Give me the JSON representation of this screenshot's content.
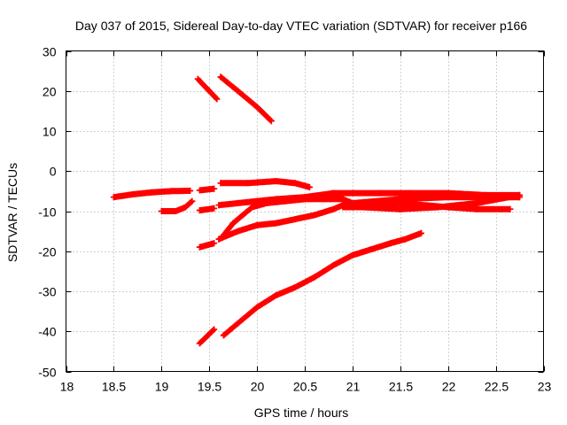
{
  "chart_data": {
    "type": "scatter",
    "title": "Day 037 of 2015, Sidereal Day-to-day VTEC variation (SDTVAR) for receiver p166",
    "xlabel": "GPS time / hours",
    "ylabel": "SDTVAR / TECUs",
    "xlim": [
      18,
      23
    ],
    "ylim": [
      -50,
      30
    ],
    "xticks": [
      18,
      18.5,
      19,
      19.5,
      20,
      20.5,
      21,
      21.5,
      22,
      22.5,
      23
    ],
    "xtick_labels": [
      "18",
      "18.5",
      "19",
      "19.5",
      "20",
      "20.5",
      "21",
      "21.5",
      "22",
      "22.5",
      "23"
    ],
    "yticks": [
      -50,
      -40,
      -30,
      -20,
      -10,
      0,
      10,
      20,
      30
    ],
    "ytick_labels": [
      "-50",
      "-40",
      "-30",
      "-20",
      "-10",
      "0",
      "10",
      "20",
      "30"
    ],
    "grid": true,
    "marker": "plus",
    "color": "#ff0000",
    "series": [
      {
        "x": [
          18.5,
          18.7,
          18.9,
          19.1,
          19.3
        ],
        "y": [
          -6.5,
          -5.8,
          -5.3,
          -5.0,
          -4.9
        ]
      },
      {
        "x": [
          19.4,
          19.55
        ],
        "y": [
          -4.8,
          -4.4
        ]
      },
      {
        "x": [
          19.0,
          19.15,
          19.25,
          19.32
        ],
        "y": [
          -10,
          -10,
          -9,
          -7.5
        ]
      },
      {
        "x": [
          19.4,
          19.55
        ],
        "y": [
          -9.8,
          -9.3
        ]
      },
      {
        "x": [
          19.4,
          19.55
        ],
        "y": [
          -19,
          -18
        ]
      },
      {
        "x": [
          19.4,
          19.55
        ],
        "y": [
          -43,
          -39.5
        ]
      },
      {
        "x": [
          19.38,
          19.5,
          19.58
        ],
        "y": [
          23,
          20,
          18
        ]
      },
      {
        "x": [
          19.62,
          19.8,
          20.0,
          20.15
        ],
        "y": [
          23.5,
          20,
          16,
          12.5
        ]
      },
      {
        "x": [
          19.62,
          19.9,
          20.2,
          20.4,
          20.55
        ],
        "y": [
          -3,
          -3,
          -2.5,
          -3,
          -4
        ]
      },
      {
        "x": [
          19.6,
          19.8,
          20.0,
          20.2,
          20.5,
          20.8,
          21.0,
          21.3,
          21.6,
          22.0,
          22.4,
          22.75
        ],
        "y": [
          -8.5,
          -8,
          -7.5,
          -7,
          -6.5,
          -5.5,
          -5.5,
          -5.5,
          -5.5,
          -5.5,
          -6,
          -6
        ]
      },
      {
        "x": [
          19.65,
          19.75,
          19.85,
          19.95,
          20.1,
          20.3,
          20.5,
          20.7,
          20.9,
          21.0,
          21.5,
          22.0,
          22.5,
          22.75
        ],
        "y": [
          -16,
          -13,
          -11,
          -9,
          -8,
          -7.5,
          -7,
          -7,
          -7,
          -8,
          -7,
          -6.5,
          -6.5,
          -6.5
        ]
      },
      {
        "x": [
          19.6,
          19.8,
          20.0,
          20.2,
          20.4,
          20.6,
          20.8,
          20.9,
          21.1,
          21.5,
          22.0,
          22.3,
          22.65
        ],
        "y": [
          -17,
          -15,
          -13.5,
          -13,
          -12,
          -11,
          -9.5,
          -8.5,
          -8,
          -8,
          -9,
          -9.5,
          -9.5
        ]
      },
      {
        "x": [
          20.9,
          21.1,
          21.5,
          21.9,
          22.3,
          22.75
        ],
        "y": [
          -9,
          -9,
          -9.5,
          -9,
          -8,
          -6
        ]
      },
      {
        "x": [
          19.65,
          19.8,
          20.0,
          20.2,
          20.4,
          20.6,
          20.8,
          21.0,
          21.2,
          21.4,
          21.55,
          21.72
        ],
        "y": [
          -41,
          -38,
          -34,
          -31,
          -29,
          -26.5,
          -23.5,
          -21,
          -19.5,
          -18,
          -17,
          -15.5
        ]
      }
    ]
  }
}
